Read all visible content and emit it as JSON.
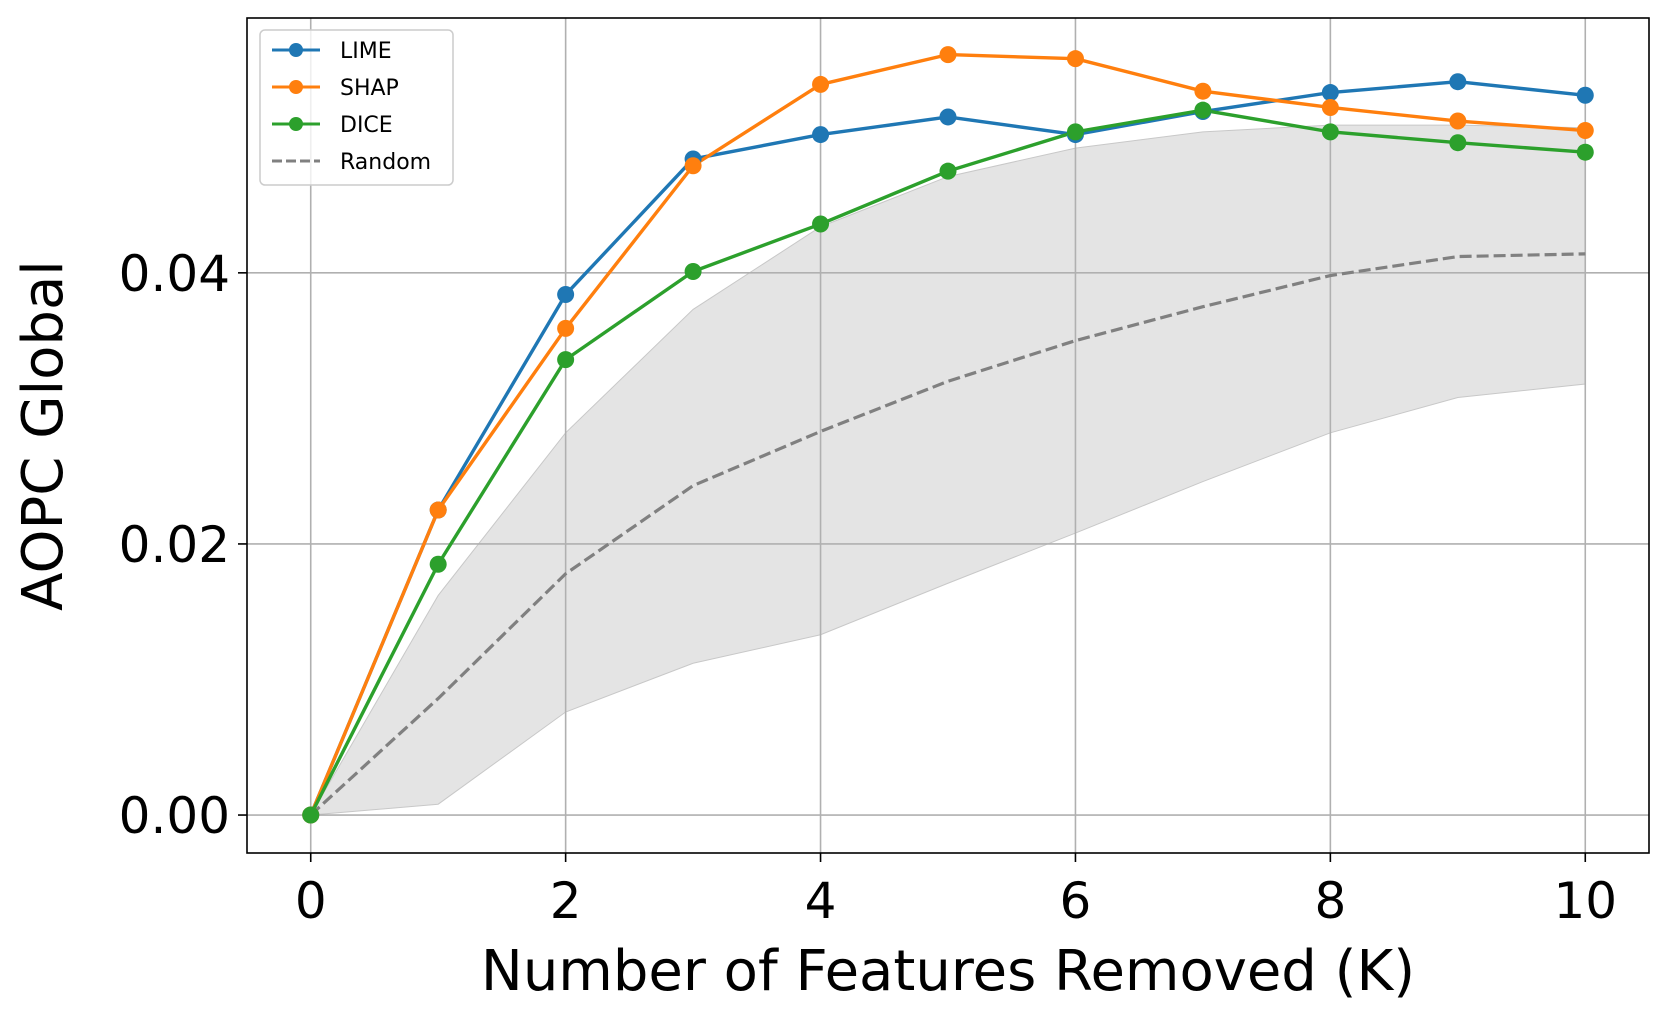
{
  "chart_data": {
    "type": "line",
    "xlabel": "Number of Features Removed (K)",
    "ylabel": "AOPC Global",
    "xlim": [
      -0.5,
      10.5
    ],
    "ylim": [
      -0.0028,
      0.0588
    ],
    "xticks": [
      0,
      2,
      4,
      6,
      8,
      10
    ],
    "xtick_labels": [
      "0",
      "2",
      "4",
      "6",
      "8",
      "10"
    ],
    "yticks": [
      0.0,
      0.02,
      0.04
    ],
    "ytick_labels": [
      "0.00",
      "0.02",
      "0.04"
    ],
    "grid": true,
    "legend_position": "top-left",
    "x": [
      0,
      1,
      2,
      3,
      4,
      5,
      6,
      7,
      8,
      9,
      10
    ],
    "series": [
      {
        "name": "LIME",
        "color": "#1f77b4",
        "marker": "circle",
        "linestyle": "solid",
        "values": [
          0.0,
          0.0225,
          0.0384,
          0.0484,
          0.0502,
          0.0515,
          0.0502,
          0.0519,
          0.0533,
          0.0541,
          0.0531
        ]
      },
      {
        "name": "SHAP",
        "color": "#ff7f0e",
        "marker": "circle",
        "linestyle": "solid",
        "values": [
          0.0,
          0.0225,
          0.0359,
          0.0479,
          0.0539,
          0.0561,
          0.0558,
          0.0534,
          0.0522,
          0.0512,
          0.0505
        ]
      },
      {
        "name": "DICE",
        "color": "#2ca02c",
        "marker": "circle",
        "linestyle": "solid",
        "values": [
          0.0,
          0.0185,
          0.0336,
          0.0401,
          0.0436,
          0.0475,
          0.0504,
          0.052,
          0.0504,
          0.0496,
          0.0489
        ]
      },
      {
        "name": "Random",
        "color": "#808080",
        "marker": "none",
        "linestyle": "dashed",
        "values": [
          0.0,
          0.0086,
          0.0178,
          0.0243,
          0.0283,
          0.032,
          0.035,
          0.0375,
          0.0398,
          0.0412,
          0.0414
        ]
      }
    ],
    "band": {
      "color": "#d3d3d3",
      "lower": [
        0.0,
        0.0008,
        0.0076,
        0.0112,
        0.0133,
        0.0171,
        0.0208,
        0.0246,
        0.0282,
        0.0308,
        0.0318
      ],
      "upper": [
        0.0,
        0.0162,
        0.0282,
        0.0373,
        0.0434,
        0.0471,
        0.0492,
        0.0504,
        0.0509,
        0.0509,
        0.0507
      ]
    }
  }
}
